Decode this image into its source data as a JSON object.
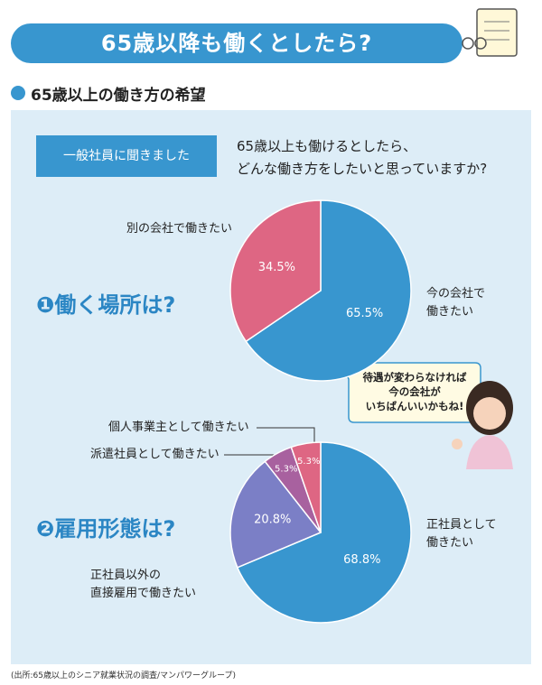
{
  "header": {
    "title": "65歳以降も働くとしたら?"
  },
  "section": {
    "title": "65歳以上の働き方の希望"
  },
  "survey": {
    "tag": "一般社員に聞きました",
    "question": "65歳以上も働けるとしたら、\nどんな働き方をしたいと思っていますか?"
  },
  "speech": {
    "text": "待遇が変わらなければ\n今の会社が\nいちばんいいかもね!"
  },
  "source": "(出所:65歳以上のシニア就業状況の調査/マンパワーグループ)",
  "chart_data": [
    {
      "type": "pie",
      "title": "❶働く場所は?",
      "categories": [
        "今の会社で\n働きたい",
        "別の会社で働きたい"
      ],
      "values": [
        65.5,
        34.5
      ],
      "value_labels": [
        "65.5%",
        "34.5%"
      ],
      "colors": [
        "#3896cf",
        "#de6683"
      ]
    },
    {
      "type": "pie",
      "title": "❷雇用形態は?",
      "categories": [
        "正社員として\n働きたい",
        "正社員以外の\n直接雇用で働きたい",
        "派遣社員として働きたい",
        "個人事業主として働きたい"
      ],
      "values": [
        68.8,
        20.8,
        5.3,
        5.3
      ],
      "value_labels": [
        "68.8%",
        "20.8%",
        "5.3%",
        "5.3%"
      ],
      "colors": [
        "#3896cf",
        "#7b7fc6",
        "#a8619f",
        "#de6683"
      ]
    }
  ]
}
